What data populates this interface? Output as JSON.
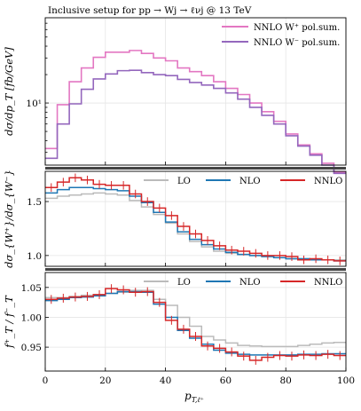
{
  "chart_data": [
    {
      "type": "line",
      "panel": "top",
      "title": "Inclusive setup for pp → Wj → ℓνj @ 13 TeV",
      "ylabel": "dσ/dp_T [fb/GeV]",
      "yscale": "log",
      "ylim": [
        2.2,
        80
      ],
      "xlim": [
        0,
        100
      ],
      "yticks": [
        {
          "value": 10,
          "label": "10¹"
        }
      ],
      "grid": true,
      "legend_position": "top-right",
      "bin_edges": [
        0,
        4,
        8,
        12,
        16,
        20,
        24,
        28,
        32,
        36,
        40,
        44,
        48,
        52,
        56,
        60,
        64,
        68,
        72,
        76,
        80,
        84,
        88,
        92,
        96,
        100
      ],
      "series": [
        {
          "name": "NNLO W⁺ pol.sum.",
          "color": "#e377c2",
          "values": [
            3.3,
            9.6,
            16.8,
            23.5,
            30.5,
            34.5,
            34.5,
            36.0,
            33.5,
            30.0,
            28.0,
            23.5,
            21.5,
            19.5,
            16.8,
            14.3,
            12.3,
            10.0,
            8.1,
            6.4,
            4.7,
            3.6,
            2.9,
            2.3,
            1.85
          ]
        },
        {
          "name": "NNLO W⁻ pol.sum.",
          "color": "#9467bd",
          "values": [
            2.6,
            6.0,
            9.8,
            14.0,
            18.0,
            20.3,
            22.0,
            22.2,
            21.0,
            20.0,
            19.5,
            17.8,
            16.5,
            15.5,
            14.3,
            12.8,
            11.0,
            9.0,
            7.4,
            6.0,
            4.5,
            3.5,
            2.8,
            2.2,
            1.8
          ]
        }
      ]
    },
    {
      "type": "line",
      "panel": "middle",
      "ylabel": "dσ_{W⁺}/dσ_{W⁻}",
      "ylim": [
        0.9,
        1.78
      ],
      "xlim": [
        0,
        100
      ],
      "yticks": [
        {
          "value": 1.0,
          "label": "1.0"
        },
        {
          "value": 1.5,
          "label": "1.5"
        }
      ],
      "grid": true,
      "legend_position": "top",
      "bin_edges": [
        0,
        4,
        8,
        12,
        16,
        20,
        24,
        28,
        32,
        36,
        40,
        44,
        48,
        52,
        56,
        60,
        64,
        68,
        72,
        76,
        80,
        84,
        88,
        92,
        96,
        100
      ],
      "series": [
        {
          "name": "LO",
          "color": "#bbbbbb",
          "values": [
            1.53,
            1.55,
            1.56,
            1.57,
            1.58,
            1.57,
            1.56,
            1.51,
            1.45,
            1.38,
            1.3,
            1.2,
            1.13,
            1.08,
            1.04,
            1.02,
            1.01,
            1.0,
            0.99,
            0.98,
            0.97,
            0.97,
            0.96,
            0.96,
            0.96
          ]
        },
        {
          "name": "NLO",
          "color": "#1f77b4",
          "values": [
            1.58,
            1.61,
            1.63,
            1.63,
            1.62,
            1.61,
            1.6,
            1.55,
            1.49,
            1.4,
            1.31,
            1.22,
            1.15,
            1.1,
            1.06,
            1.03,
            1.01,
            1.0,
            0.99,
            0.98,
            0.97,
            0.97,
            0.96,
            0.96,
            0.95
          ]
        },
        {
          "name": "NNLO",
          "color": "#d62728",
          "values": [
            1.63,
            1.68,
            1.72,
            1.7,
            1.66,
            1.65,
            1.65,
            1.57,
            1.5,
            1.44,
            1.37,
            1.27,
            1.2,
            1.14,
            1.09,
            1.05,
            1.04,
            1.02,
            1.0,
            1.0,
            0.99,
            0.96,
            0.97,
            0.96,
            0.95
          ]
        }
      ]
    },
    {
      "type": "line",
      "panel": "bottom",
      "ylabel": "f⁺_T / f⁻_T",
      "xlabel": "p_{T,ℓ⁺}",
      "ylim": [
        0.91,
        1.075
      ],
      "xlim": [
        0,
        100
      ],
      "xticks": [
        0,
        20,
        40,
        60,
        80,
        100
      ],
      "yticks": [
        {
          "value": 0.95,
          "label": "0.95"
        },
        {
          "value": 1.0,
          "label": "1.00"
        },
        {
          "value": 1.05,
          "label": "1.05"
        }
      ],
      "grid": true,
      "legend_position": "top",
      "bin_edges": [
        0,
        4,
        8,
        12,
        16,
        20,
        24,
        28,
        32,
        36,
        40,
        44,
        48,
        52,
        56,
        60,
        64,
        68,
        72,
        76,
        80,
        84,
        88,
        92,
        96,
        100
      ],
      "series": [
        {
          "name": "LO",
          "color": "#bbbbbb",
          "values": [
            1.033,
            1.033,
            1.035,
            1.037,
            1.038,
            1.04,
            1.042,
            1.045,
            1.045,
            1.03,
            1.02,
            1.0,
            0.985,
            0.968,
            0.962,
            0.957,
            0.953,
            0.952,
            0.951,
            0.951,
            0.951,
            0.953,
            0.955,
            0.957,
            0.958
          ]
        },
        {
          "name": "NLO",
          "color": "#1f77b4",
          "values": [
            1.028,
            1.03,
            1.033,
            1.034,
            1.036,
            1.04,
            1.043,
            1.043,
            1.042,
            1.022,
            1.0,
            0.978,
            0.965,
            0.955,
            0.945,
            0.94,
            0.938,
            0.937,
            0.937,
            0.937,
            0.937,
            0.938,
            0.938,
            0.939,
            0.939
          ]
        },
        {
          "name": "NNLO",
          "color": "#d62728",
          "values": [
            1.03,
            1.032,
            1.034,
            1.035,
            1.038,
            1.048,
            1.046,
            1.042,
            1.043,
            1.025,
            0.995,
            0.98,
            0.968,
            0.952,
            0.948,
            0.942,
            0.935,
            0.928,
            0.933,
            0.936,
            0.935,
            0.937,
            0.936,
            0.938,
            0.936
          ]
        }
      ]
    }
  ]
}
